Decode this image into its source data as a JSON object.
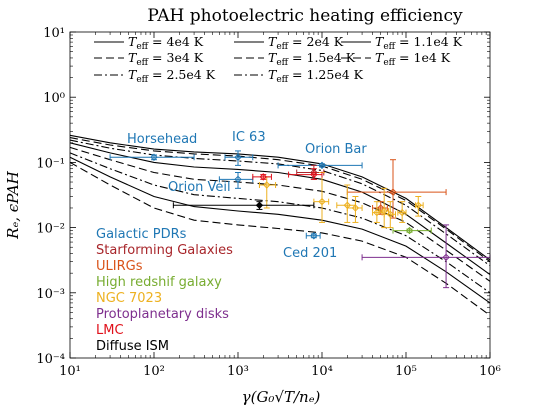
{
  "chart_data": {
    "type": "line",
    "title": "PAH photoelectric heating efficiency",
    "xlabel": "γ(G₀√T/nₑ)",
    "ylabel": "Rₑ, ϵPAH",
    "xscale": "log",
    "yscale": "log",
    "xlim": [
      10,
      1000000
    ],
    "ylim": [
      0.0001,
      10
    ],
    "x_tick_labels": [
      "10¹",
      "10²",
      "10³",
      "10⁴",
      "10⁵",
      "10⁶"
    ],
    "y_tick_labels": [
      "10⁻⁴",
      "10⁻³",
      "10⁻²",
      "10⁻¹",
      "10⁰",
      "10¹"
    ],
    "grid": false,
    "legend_placement": "top",
    "series": [
      {
        "name": "T_eff = 4e4 K",
        "style": "solid",
        "x": [
          10,
          30,
          100,
          300,
          1000,
          3000,
          10000,
          30000,
          100000,
          300000,
          1000000
        ],
        "y": [
          0.26,
          0.2,
          0.16,
          0.145,
          0.135,
          0.12,
          0.095,
          0.06,
          0.028,
          0.01,
          0.0032
        ]
      },
      {
        "name": "T_eff = 3e4 K",
        "style": "dashed",
        "x": [
          10,
          30,
          100,
          300,
          1000,
          3000,
          10000,
          30000,
          100000,
          300000,
          1000000
        ],
        "y": [
          0.24,
          0.185,
          0.15,
          0.135,
          0.125,
          0.11,
          0.088,
          0.055,
          0.026,
          0.0095,
          0.003
        ]
      },
      {
        "name": "T_eff = 2.5e4 K",
        "style": "dashdot",
        "x": [
          10,
          30,
          100,
          300,
          1000,
          3000,
          10000,
          30000,
          100000,
          300000,
          1000000
        ],
        "y": [
          0.22,
          0.165,
          0.13,
          0.115,
          0.105,
          0.095,
          0.075,
          0.047,
          0.022,
          0.008,
          0.0026
        ]
      },
      {
        "name": "T_eff = 2e4 K",
        "style": "solid",
        "x": [
          10,
          30,
          100,
          300,
          1000,
          3000,
          10000,
          30000,
          100000,
          300000,
          1000000
        ],
        "y": [
          0.2,
          0.14,
          0.1,
          0.085,
          0.078,
          0.07,
          0.055,
          0.035,
          0.016,
          0.0058,
          0.0019
        ]
      },
      {
        "name": "T_eff = 1.5e4 K",
        "style": "dashed",
        "x": [
          10,
          30,
          100,
          300,
          1000,
          3000,
          10000,
          30000,
          100000,
          300000,
          1000000
        ],
        "y": [
          0.17,
          0.11,
          0.07,
          0.055,
          0.05,
          0.045,
          0.036,
          0.024,
          0.012,
          0.0045,
          0.0015
        ]
      },
      {
        "name": "T_eff = 1.25e4 K",
        "style": "dashdot",
        "x": [
          10,
          30,
          100,
          300,
          1000,
          3000,
          10000,
          30000,
          100000,
          300000,
          1000000
        ],
        "y": [
          0.14,
          0.08,
          0.045,
          0.032,
          0.028,
          0.025,
          0.02,
          0.014,
          0.0075,
          0.003,
          0.001
        ]
      },
      {
        "name": "T_eff = 1.1e4 K",
        "style": "solid",
        "x": [
          10,
          30,
          100,
          300,
          1000,
          3000,
          10000,
          30000,
          100000,
          300000,
          1000000
        ],
        "y": [
          0.12,
          0.06,
          0.03,
          0.021,
          0.018,
          0.016,
          0.013,
          0.0095,
          0.0052,
          0.0021,
          0.0007
        ]
      },
      {
        "name": "T_eff = 1e4 K",
        "style": "dashed",
        "x": [
          10,
          30,
          100,
          300,
          1000,
          3000,
          10000,
          30000,
          100000,
          300000,
          1000000
        ],
        "y": [
          0.1,
          0.045,
          0.02,
          0.013,
          0.011,
          0.0097,
          0.0083,
          0.0062,
          0.0035,
          0.0014,
          0.00045
        ]
      }
    ],
    "observations": [
      {
        "group": "Galactic PDRs",
        "color": "#1f77b4",
        "points": [
          {
            "x": 100,
            "y": 0.12,
            "xerr": [
              30,
              300
            ],
            "yerr": [
              0.11,
              0.13
            ]
          },
          {
            "x": 1000,
            "y": 0.12,
            "xerr": [
              700,
              1500
            ],
            "yerr": [
              0.09,
              0.15
            ]
          },
          {
            "x": 1000,
            "y": 0.055,
            "xerr": [
              600,
              1500
            ],
            "yerr": [
              0.04,
              0.07
            ]
          },
          {
            "x": 10000,
            "y": 0.09,
            "xerr": [
              3000,
              30000
            ],
            "yerr": [
              0.085,
              0.095
            ]
          },
          {
            "x": 8000,
            "y": 0.0075,
            "xerr": [
              6500,
              9500
            ],
            "yerr": [
              0.007,
              0.008
            ]
          }
        ]
      },
      {
        "group": "Starforming Galaxies",
        "color": "#a8262b",
        "points": [
          {
            "x": 8000,
            "y": 0.07,
            "xerr": [
              5000,
              10500
            ],
            "yerr": [
              0.055,
              0.09
            ]
          }
        ]
      },
      {
        "group": "ULIRGs",
        "color": "#d95319",
        "points": [
          {
            "x": 70000,
            "y": 0.035,
            "xerr": [
              20000,
              300000
            ],
            "yerr": [
              0.014,
              0.11
            ]
          },
          {
            "x": 50000,
            "y": 0.02,
            "xerr": [
              40000,
              60000
            ],
            "yerr": [
              0.016,
              0.025
            ]
          }
        ]
      },
      {
        "group": "High redshif galaxy",
        "color": "#77ac30",
        "points": [
          {
            "x": 110000,
            "y": 0.009,
            "xerr": [
              70000,
              200000
            ],
            "yerr": [
              0.0085,
              0.0095
            ]
          }
        ]
      },
      {
        "group": "NGC 7023",
        "color": "#edb120",
        "points": [
          {
            "x": 2200,
            "y": 0.045,
            "xerr": [
              1800,
              2800
            ],
            "yerr": [
              0.02,
              0.06
            ]
          },
          {
            "x": 10000,
            "y": 0.025,
            "xerr": [
              8000,
              12000
            ],
            "yerr": [
              0.012,
              0.07
            ]
          },
          {
            "x": 20000,
            "y": 0.022,
            "xerr": [
              15000,
              25000
            ],
            "yerr": [
              0.012,
              0.045
            ]
          },
          {
            "x": 25000,
            "y": 0.02,
            "xerr": [
              20000,
              30000
            ],
            "yerr": [
              0.012,
              0.03
            ]
          },
          {
            "x": 45000,
            "y": 0.017,
            "xerr": [
              40000,
              52000
            ],
            "yerr": [
              0.012,
              0.025
            ]
          },
          {
            "x": 55000,
            "y": 0.018,
            "xerr": [
              48000,
              62000
            ],
            "yerr": [
              0.01,
              0.04
            ]
          },
          {
            "x": 65000,
            "y": 0.016,
            "xerr": [
              55000,
              75000
            ],
            "yerr": [
              0.01,
              0.025
            ]
          },
          {
            "x": 90000,
            "y": 0.017,
            "xerr": [
              80000,
              100000
            ],
            "yerr": [
              0.012,
              0.025
            ]
          },
          {
            "x": 140000,
            "y": 0.022,
            "xerr": [
              130000,
              160000
            ],
            "yerr": [
              0.015,
              0.03
            ]
          }
        ]
      },
      {
        "group": "Protoplanetary disks",
        "color": "#7e2f8e",
        "points": [
          {
            "x": 300000,
            "y": 0.0035,
            "xerr": [
              30000,
              1000000
            ],
            "yerr": [
              0.0012,
              0.011
            ]
          }
        ]
      },
      {
        "group": "LMC",
        "color": "#e0101a",
        "points": [
          {
            "x": 2000,
            "y": 0.06,
            "xerr": [
              1500,
              2500
            ],
            "yerr": [
              0.055,
              0.065
            ]
          },
          {
            "x": 8000,
            "y": 0.065,
            "xerr": [
              4000,
              10000
            ],
            "yerr": [
              0.055,
              0.08
            ]
          }
        ]
      },
      {
        "group": "Diffuse ISM",
        "color": "#000000",
        "points": [
          {
            "x": 1800,
            "y": 0.022,
            "xerr": [
              170,
              8000
            ],
            "yerr": [
              0.019,
              0.025
            ]
          }
        ]
      }
    ],
    "annotations": [
      {
        "text": "Horsehead",
        "color": "#1f77b4"
      },
      {
        "text": "IC 63",
        "color": "#1f77b4"
      },
      {
        "text": "Orion Bar",
        "color": "#1f77b4"
      },
      {
        "text": "Orion Veil",
        "color": "#1f77b4"
      },
      {
        "text": "Ced 201",
        "color": "#1f77b4"
      }
    ]
  },
  "legend": {
    "rows": [
      [
        {
          "label": "= 4e4 K",
          "style": "solid"
        },
        {
          "label": "= 2e4 K",
          "style": "solid"
        },
        {
          "label": "= 1.1e4 K",
          "style": "solid"
        }
      ],
      [
        {
          "label": "= 3e4 K",
          "style": "dashed"
        },
        {
          "label": "= 1.5e4 K",
          "style": "dashed"
        },
        {
          "label": "= 1e4 K",
          "style": "dashed"
        }
      ],
      [
        {
          "label": "= 2.5e4 K",
          "style": "dashdot"
        },
        {
          "label": "= 1.25e4 K",
          "style": "dashdot"
        }
      ]
    ],
    "t_symbol": "T",
    "t_sub": "eff"
  }
}
